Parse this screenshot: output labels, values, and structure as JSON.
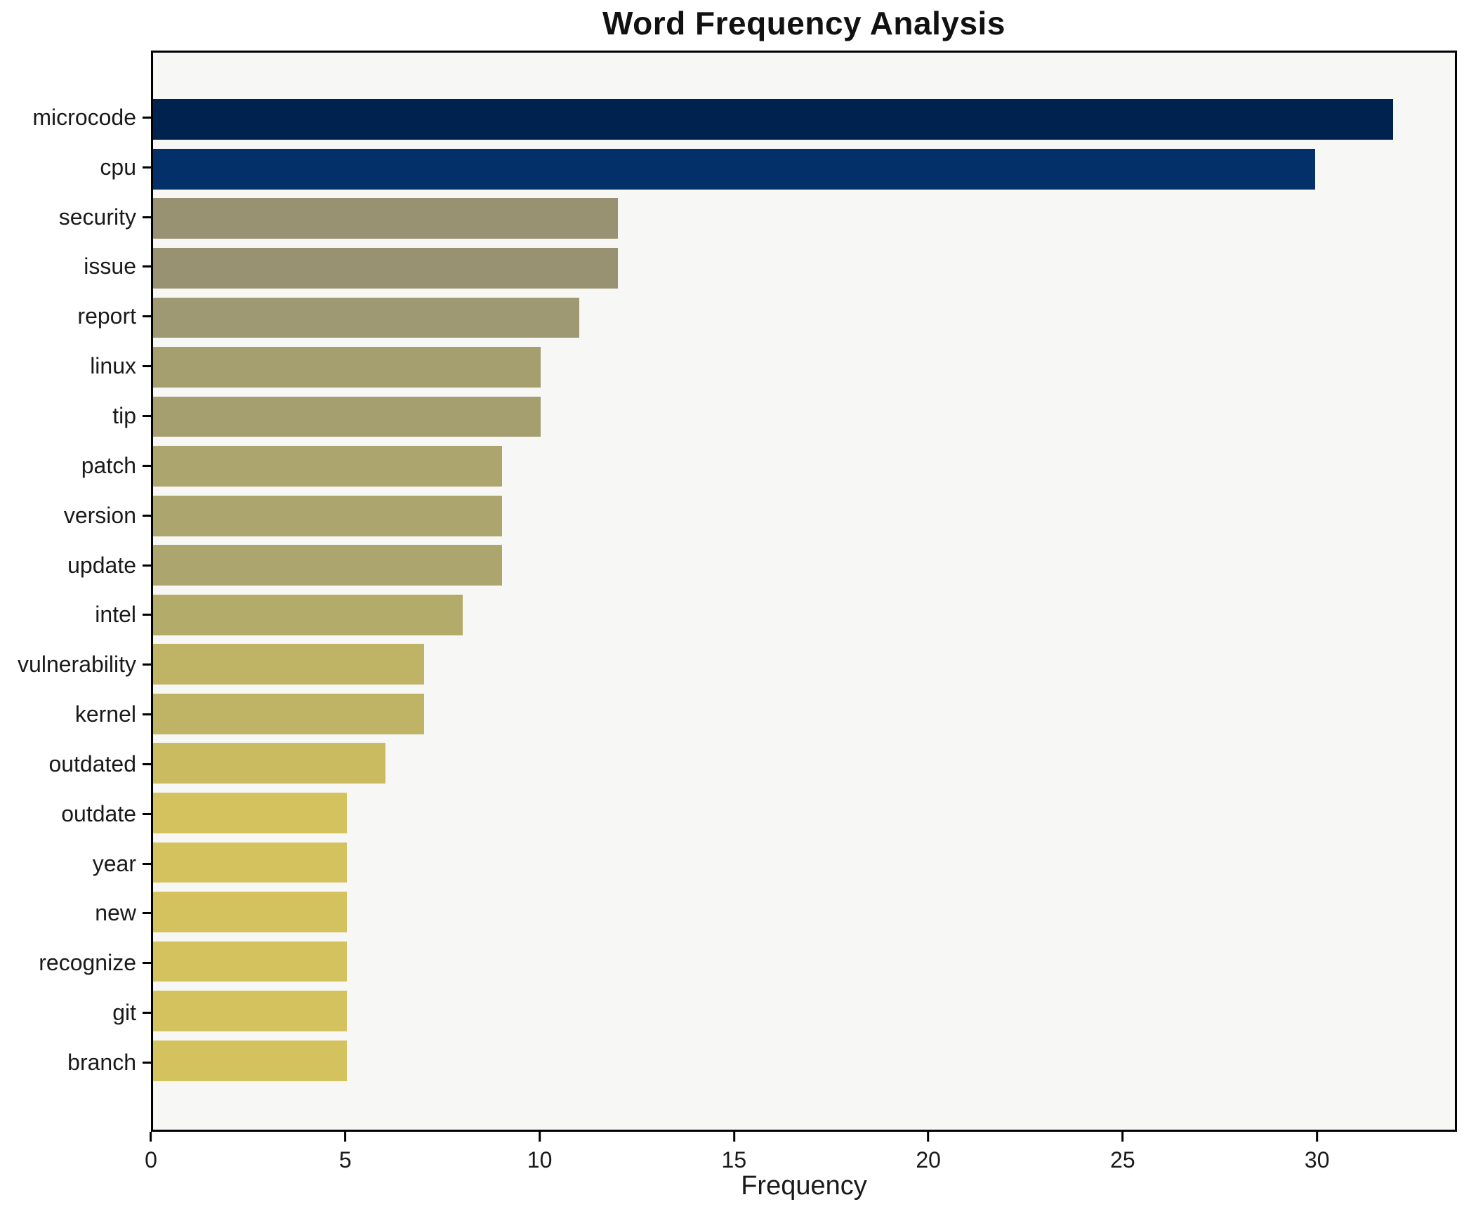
{
  "title": "Word Frequency Analysis",
  "axes": {
    "xlabel": "Frequency"
  },
  "chart_data": {
    "type": "bar",
    "orientation": "horizontal",
    "title": "Word Frequency Analysis",
    "xlabel": "Frequency",
    "ylabel": "",
    "xlim": [
      0,
      33.6
    ],
    "x_ticks": [
      0,
      5,
      10,
      15,
      20,
      25,
      30
    ],
    "grid": false,
    "legend": "none",
    "categories": [
      "microcode",
      "cpu",
      "security",
      "issue",
      "report",
      "linux",
      "tip",
      "patch",
      "version",
      "update",
      "intel",
      "vulnerability",
      "kernel",
      "outdated",
      "outdate",
      "year",
      "new",
      "recognize",
      "git",
      "branch"
    ],
    "values": [
      32,
      30,
      12,
      12,
      11,
      10,
      10,
      9,
      9,
      9,
      8,
      7,
      7,
      6,
      5,
      5,
      5,
      5,
      5,
      5
    ],
    "bar_colors": [
      "#00224e",
      "#04306a",
      "#999272",
      "#999272",
      "#9f9973",
      "#a59f70",
      "#a59f70",
      "#aca56d",
      "#aca56d",
      "#aca56d",
      "#b3ab69",
      "#bfb465",
      "#bfb465",
      "#cabb61",
      "#d3c25e",
      "#d3c25e",
      "#d3c25e",
      "#d3c25e",
      "#d3c25e",
      "#d3c25e"
    ],
    "colors": {
      "plot_background": "#f7f7f5",
      "figure_background": "#ffffff",
      "spine": "#000000",
      "text": "#1a1a1a"
    }
  }
}
